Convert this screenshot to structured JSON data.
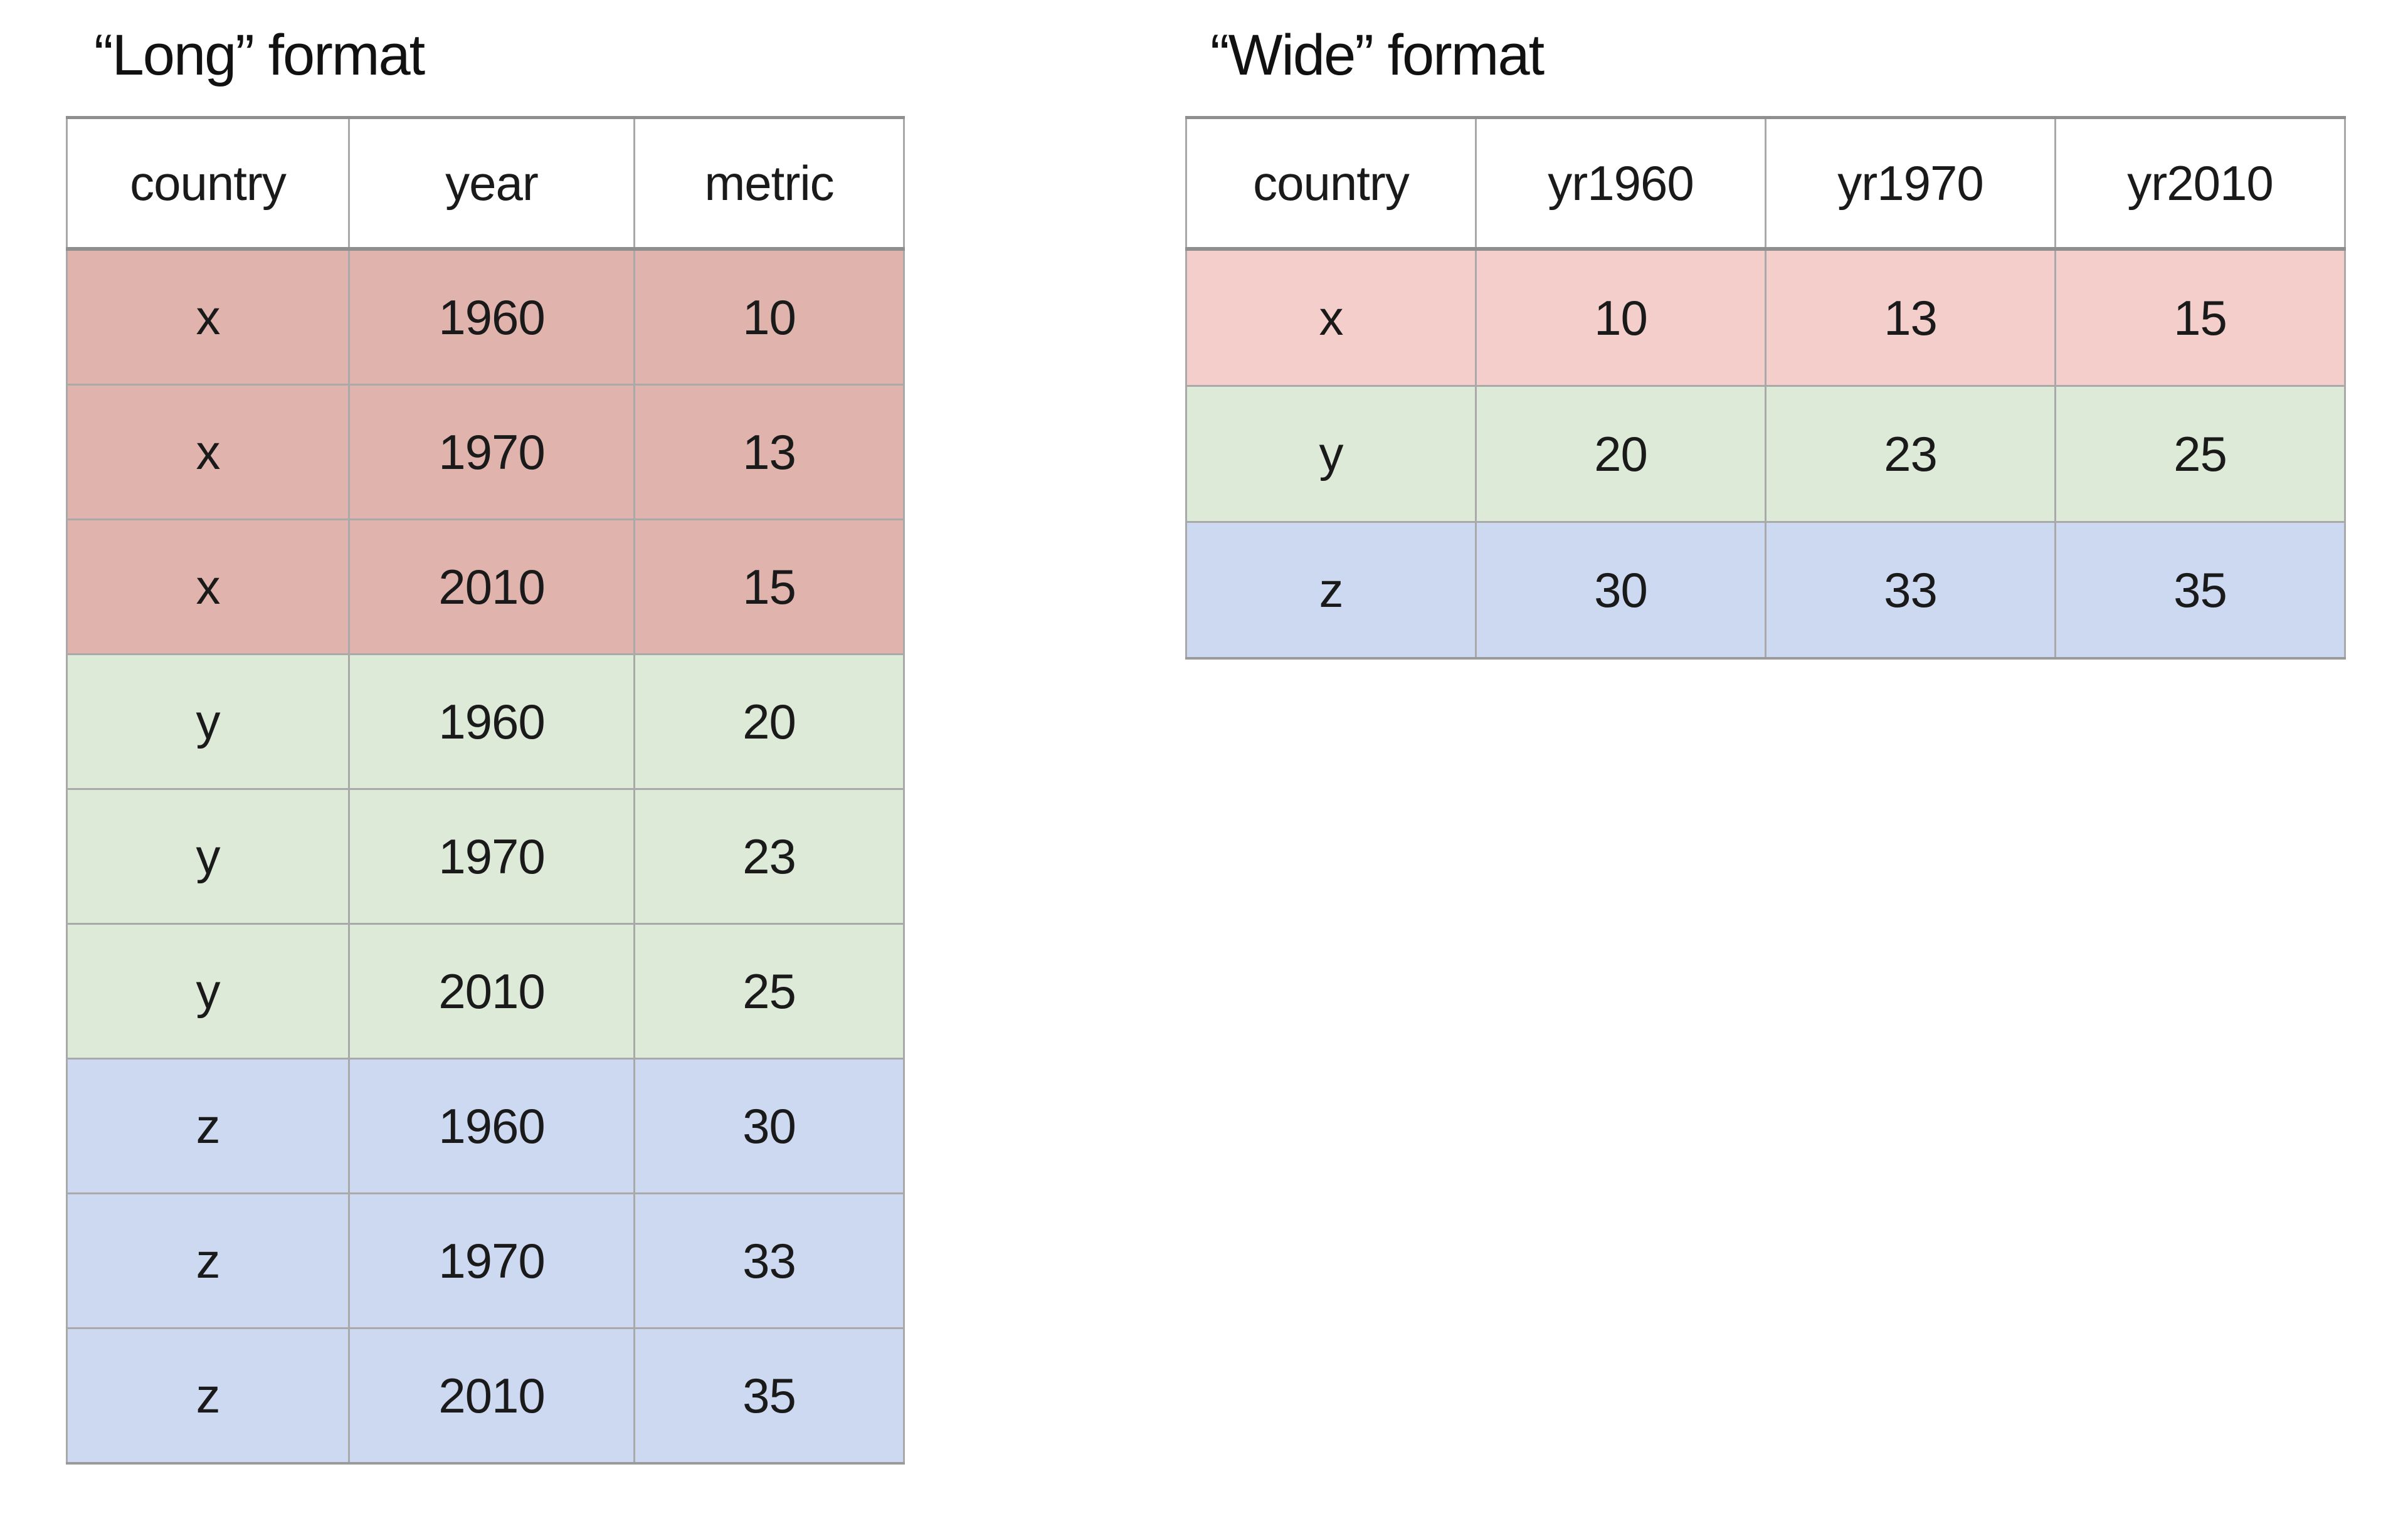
{
  "page": {
    "background": "#ffffff"
  },
  "colors": {
    "long_row_x": "#e1b3ad",
    "wide_row_x": "#f3cecb",
    "row_y": "#dcead7",
    "row_z": "#ccd9f0",
    "border": "#a9a9a9",
    "border_emphasis": "#8f8f8f",
    "header_bg": "#ffffff",
    "text": "#1a1a1a"
  },
  "long": {
    "title": "“Long” format",
    "columns": [
      "country",
      "year",
      "metric"
    ],
    "rows": [
      {
        "group": "x",
        "cells": [
          "x",
          "1960",
          "10"
        ]
      },
      {
        "group": "x",
        "cells": [
          "x",
          "1970",
          "13"
        ]
      },
      {
        "group": "x",
        "cells": [
          "x",
          "2010",
          "15"
        ]
      },
      {
        "group": "y",
        "cells": [
          "y",
          "1960",
          "20"
        ]
      },
      {
        "group": "y",
        "cells": [
          "y",
          "1970",
          "23"
        ]
      },
      {
        "group": "y",
        "cells": [
          "y",
          "2010",
          "25"
        ]
      },
      {
        "group": "z",
        "cells": [
          "z",
          "1960",
          "30"
        ]
      },
      {
        "group": "z",
        "cells": [
          "z",
          "1970",
          "33"
        ]
      },
      {
        "group": "z",
        "cells": [
          "z",
          "2010",
          "35"
        ]
      }
    ]
  },
  "wide": {
    "title": "“Wide” format",
    "columns": [
      "country",
      "yr1960",
      "yr1970",
      "yr2010"
    ],
    "rows": [
      {
        "group": "x",
        "cells": [
          "x",
          "10",
          "13",
          "15"
        ]
      },
      {
        "group": "y",
        "cells": [
          "y",
          "20",
          "23",
          "25"
        ]
      },
      {
        "group": "z",
        "cells": [
          "z",
          "30",
          "33",
          "35"
        ]
      }
    ]
  },
  "chart_data": [
    {
      "type": "table",
      "title": "“Long” format",
      "columns": [
        "country",
        "year",
        "metric"
      ],
      "rows": [
        [
          "x",
          1960,
          10
        ],
        [
          "x",
          1970,
          13
        ],
        [
          "x",
          2010,
          15
        ],
        [
          "y",
          1960,
          20
        ],
        [
          "y",
          1970,
          23
        ],
        [
          "y",
          2010,
          25
        ],
        [
          "z",
          1960,
          30
        ],
        [
          "z",
          1970,
          33
        ],
        [
          "z",
          2010,
          35
        ]
      ],
      "row_group_colors": {
        "x": "#e1b3ad",
        "y": "#dcead7",
        "z": "#ccd9f0"
      }
    },
    {
      "type": "table",
      "title": "“Wide” format",
      "columns": [
        "country",
        "yr1960",
        "yr1970",
        "yr2010"
      ],
      "rows": [
        [
          "x",
          10,
          13,
          15
        ],
        [
          "y",
          20,
          23,
          25
        ],
        [
          "z",
          30,
          33,
          35
        ]
      ],
      "row_group_colors": {
        "x": "#f3cecb",
        "y": "#dcead7",
        "z": "#ccd9f0"
      }
    }
  ]
}
